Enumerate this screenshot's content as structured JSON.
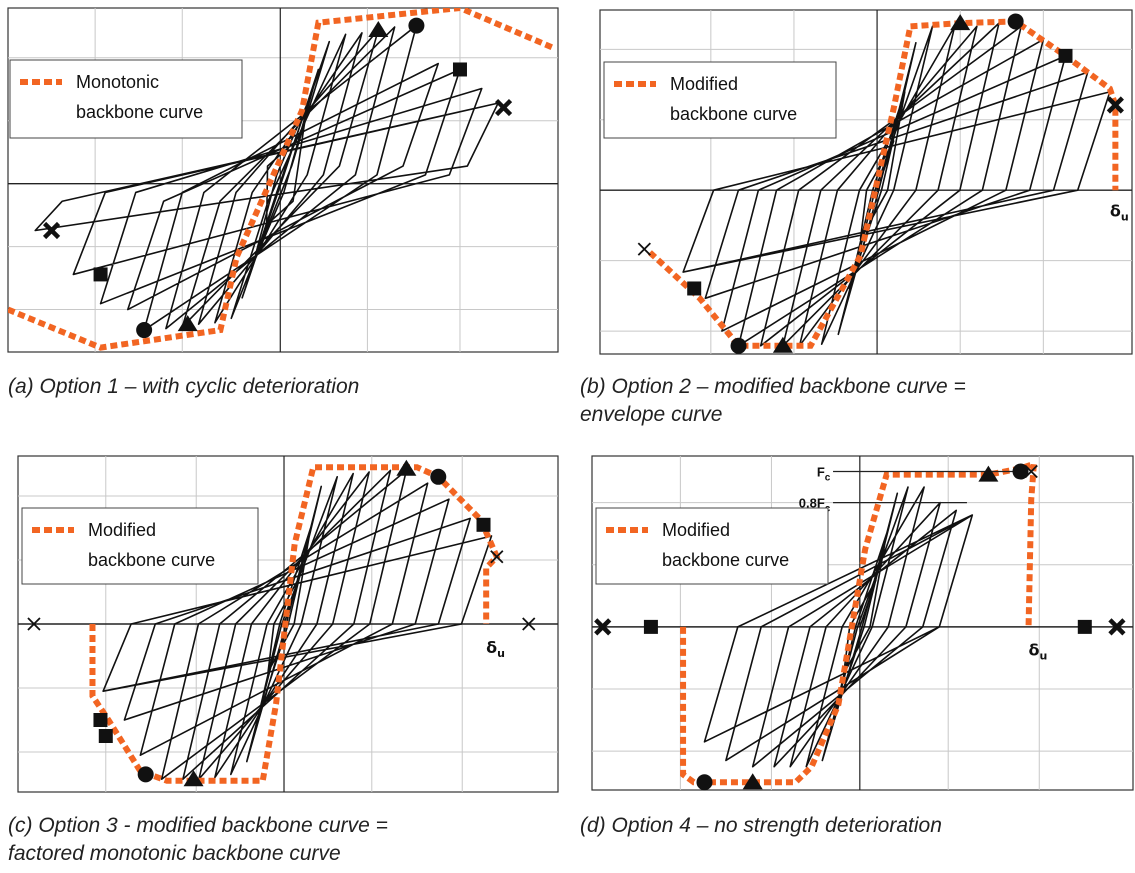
{
  "colors": {
    "backbone": "#f26522",
    "hysteresis": "#111111",
    "grid": "#c8c8c8",
    "frame": "#333333"
  },
  "chart_data": [
    {
      "type": "line",
      "id": "a",
      "caption": [
        "(a) Option 1 – with cyclic deterioration"
      ],
      "legend": {
        "label_1": "Monotonic",
        "label_2": "backbone curve"
      },
      "x_range": [
        -1,
        1.02
      ],
      "y_range": [
        -1.15,
        1.2
      ],
      "grid_x": [
        -0.68,
        -0.36,
        0,
        0.32,
        0.66
      ],
      "grid_y": [
        -0.86,
        -0.43,
        0,
        0.43,
        0.86
      ],
      "backbone": [
        [
          -1.0,
          -0.86
        ],
        [
          -0.66,
          -1.12
        ],
        [
          -0.22,
          -1.0
        ],
        [
          -0.16,
          -0.5
        ],
        [
          0.08,
          0.5
        ],
        [
          0.14,
          1.1
        ],
        [
          0.66,
          1.2
        ],
        [
          1.0,
          0.93
        ]
      ],
      "loops": [
        [
          0.05,
          0.28
        ],
        [
          0.1,
          0.55
        ],
        [
          0.14,
          0.78
        ],
        [
          0.18,
          0.97
        ],
        [
          0.24,
          1.02
        ],
        [
          0.3,
          1.03
        ],
        [
          0.36,
          1.05
        ],
        [
          0.42,
          1.07
        ],
        [
          0.5,
          1.08
        ],
        [
          0.58,
          0.82
        ],
        [
          0.66,
          0.78
        ],
        [
          0.74,
          0.65
        ],
        [
          0.8,
          0.55
        ]
      ],
      "neg_loops": [
        [
          -0.05,
          -0.28
        ],
        [
          -0.1,
          -0.55
        ],
        [
          -0.14,
          -0.78
        ],
        [
          -0.18,
          -0.92
        ],
        [
          -0.24,
          -0.95
        ],
        [
          -0.3,
          -0.96
        ],
        [
          -0.36,
          -0.98
        ],
        [
          -0.42,
          -0.99
        ],
        [
          -0.5,
          -1.0
        ],
        [
          -0.56,
          -0.86
        ],
        [
          -0.66,
          -0.82
        ],
        [
          -0.76,
          -0.62
        ],
        [
          -0.9,
          -0.32
        ]
      ],
      "release_to": "low",
      "markers": [
        {
          "shape": "triangle",
          "x": 0.36,
          "y": 1.05
        },
        {
          "shape": "circle",
          "x": 0.5,
          "y": 1.08
        },
        {
          "shape": "square",
          "x": 0.66,
          "y": 0.78
        },
        {
          "shape": "xbold",
          "x": 0.82,
          "y": 0.52
        },
        {
          "shape": "triangle",
          "x": -0.34,
          "y": -0.96
        },
        {
          "shape": "circle",
          "x": -0.5,
          "y": -1.0
        },
        {
          "shape": "square",
          "x": -0.66,
          "y": -0.62
        },
        {
          "shape": "xbold",
          "x": -0.84,
          "y": -0.32
        }
      ],
      "annotations": []
    },
    {
      "type": "line",
      "id": "b",
      "caption": [
        "(b) Option 2 – modified backbone curve =",
        "envelope curve"
      ],
      "legend": {
        "label_1": "Modified",
        "label_2": "backbone curve"
      },
      "x_range": [
        -1,
        0.92
      ],
      "y_range": [
        -1.0,
        1.1
      ],
      "grid_x": [
        -0.6,
        -0.3,
        0,
        0.3,
        0.6
      ],
      "grid_y": [
        -0.86,
        -0.43,
        0,
        0.43,
        0.86
      ],
      "backbone": [
        [
          -0.82,
          -0.38
        ],
        [
          -0.64,
          -0.66
        ],
        [
          -0.5,
          -0.95
        ],
        [
          -0.36,
          -0.95
        ],
        [
          -0.24,
          -0.95
        ],
        [
          -0.06,
          -0.4
        ],
        [
          0.06,
          0.5
        ],
        [
          0.12,
          1.0
        ],
        [
          0.3,
          1.02
        ],
        [
          0.5,
          1.03
        ],
        [
          0.68,
          0.82
        ],
        [
          0.84,
          0.62
        ],
        [
          0.86,
          0.52
        ],
        [
          0.86,
          0.0
        ]
      ],
      "loops": [
        [
          0.06,
          0.3
        ],
        [
          0.1,
          0.6
        ],
        [
          0.14,
          0.9
        ],
        [
          0.2,
          1.0
        ],
        [
          0.28,
          1.0
        ],
        [
          0.36,
          1.0
        ],
        [
          0.44,
          1.02
        ],
        [
          0.52,
          1.0
        ],
        [
          0.6,
          0.92
        ],
        [
          0.68,
          0.82
        ],
        [
          0.76,
          0.72
        ],
        [
          0.84,
          0.6
        ]
      ],
      "neg_loops": [
        [
          -0.06,
          -0.3
        ],
        [
          -0.1,
          -0.6
        ],
        [
          -0.14,
          -0.88
        ],
        [
          -0.2,
          -0.94
        ],
        [
          -0.28,
          -0.95
        ],
        [
          -0.34,
          -0.95
        ],
        [
          -0.42,
          -0.95
        ],
        [
          -0.5,
          -0.95
        ],
        [
          -0.56,
          -0.86
        ],
        [
          -0.62,
          -0.66
        ],
        [
          -0.7,
          -0.5
        ]
      ],
      "release_to": "zero",
      "markers": [
        {
          "shape": "triangle",
          "x": 0.3,
          "y": 1.02
        },
        {
          "shape": "circle",
          "x": 0.5,
          "y": 1.03
        },
        {
          "shape": "square",
          "x": 0.68,
          "y": 0.82
        },
        {
          "shape": "xbold",
          "x": 0.86,
          "y": 0.52
        },
        {
          "shape": "triangle",
          "x": -0.34,
          "y": -0.95
        },
        {
          "shape": "circle",
          "x": -0.5,
          "y": -0.95
        },
        {
          "shape": "square",
          "x": -0.66,
          "y": -0.6
        },
        {
          "shape": "xthin",
          "x": -0.84,
          "y": -0.36
        }
      ],
      "annotations": [
        {
          "text": "δ",
          "sub": "u",
          "x": 0.84,
          "y": -0.1
        }
      ]
    },
    {
      "type": "line",
      "id": "c",
      "caption": [
        "(c) Option 3 - modified backbone curve =",
        "factored monotonic backbone curve"
      ],
      "legend": {
        "label_1": "Modified",
        "label_2": "backbone curve"
      },
      "x_range": [
        -1,
        1.03
      ],
      "y_range": [
        -1.05,
        1.05
      ],
      "grid_x": [
        -0.67,
        -0.33,
        0,
        0.33,
        0.67
      ],
      "grid_y": [
        -0.8,
        -0.4,
        0,
        0.4,
        0.8
      ],
      "backbone": [
        [
          -0.72,
          0.0
        ],
        [
          -0.72,
          -0.45
        ],
        [
          -0.66,
          -0.6
        ],
        [
          -0.54,
          -0.92
        ],
        [
          -0.44,
          -0.98
        ],
        [
          -0.08,
          -0.98
        ],
        [
          -0.03,
          -0.5
        ],
        [
          0.04,
          0.5
        ],
        [
          0.11,
          0.98
        ],
        [
          0.5,
          0.98
        ],
        [
          0.58,
          0.92
        ],
        [
          0.74,
          0.65
        ],
        [
          0.8,
          0.42
        ],
        [
          0.76,
          0.35
        ],
        [
          0.76,
          0.0
        ]
      ],
      "loops": [
        [
          0.06,
          0.3
        ],
        [
          0.1,
          0.6
        ],
        [
          0.14,
          0.86
        ],
        [
          0.2,
          0.92
        ],
        [
          0.26,
          0.94
        ],
        [
          0.32,
          0.95
        ],
        [
          0.4,
          0.96
        ],
        [
          0.46,
          0.96
        ],
        [
          0.54,
          0.88
        ],
        [
          0.62,
          0.78
        ],
        [
          0.7,
          0.66
        ],
        [
          0.78,
          0.55
        ]
      ],
      "neg_loops": [
        [
          -0.06,
          -0.3
        ],
        [
          -0.1,
          -0.6
        ],
        [
          -0.14,
          -0.86
        ],
        [
          -0.2,
          -0.94
        ],
        [
          -0.26,
          -0.96
        ],
        [
          -0.32,
          -0.97
        ],
        [
          -0.38,
          -0.97
        ],
        [
          -0.46,
          -0.97
        ],
        [
          -0.54,
          -0.82
        ],
        [
          -0.6,
          -0.6
        ],
        [
          -0.68,
          -0.42
        ]
      ],
      "release_to": "zero",
      "markers": [
        {
          "shape": "triangle",
          "x": 0.46,
          "y": 0.97
        },
        {
          "shape": "circle",
          "x": 0.58,
          "y": 0.92
        },
        {
          "shape": "square",
          "x": 0.75,
          "y": 0.62
        },
        {
          "shape": "xthin",
          "x": 0.8,
          "y": 0.42
        },
        {
          "shape": "xthin",
          "x": 0.92,
          "y": 0.0
        },
        {
          "shape": "triangle",
          "x": -0.34,
          "y": -0.97
        },
        {
          "shape": "circle",
          "x": -0.52,
          "y": -0.94
        },
        {
          "shape": "square",
          "x": -0.69,
          "y": -0.6
        },
        {
          "shape": "square",
          "x": -0.67,
          "y": -0.7
        },
        {
          "shape": "xthin",
          "x": -0.94,
          "y": 0.0
        }
      ],
      "annotations": [
        {
          "text": "δ",
          "sub": "u",
          "x": 0.76,
          "y": -0.12
        }
      ]
    },
    {
      "type": "line",
      "id": "d",
      "caption": [
        "(d) Option 4 – no strength deterioration"
      ],
      "legend": {
        "label_1": "Modified",
        "label_2": "backbone curve"
      },
      "x_range": [
        -1,
        1.02
      ],
      "y_range": [
        -1.05,
        1.1
      ],
      "grid_x": [
        -0.67,
        -0.33,
        0,
        0.33,
        0.67
      ],
      "grid_y": [
        -0.8,
        -0.4,
        0,
        0.4,
        0.8
      ],
      "backbone": [
        [
          -0.66,
          0.0
        ],
        [
          -0.66,
          -0.95
        ],
        [
          -0.62,
          -1.0
        ],
        [
          -0.24,
          -1.0
        ],
        [
          -0.18,
          -0.9
        ],
        [
          -0.08,
          -0.5
        ],
        [
          0.02,
          0.5
        ],
        [
          0.1,
          0.98
        ],
        [
          0.48,
          0.98
        ],
        [
          0.6,
          1.02
        ],
        [
          0.65,
          1.05
        ],
        [
          0.64,
          0.82
        ],
        [
          0.63,
          0.0
        ]
      ],
      "loops": [
        [
          0.06,
          0.3
        ],
        [
          0.1,
          0.6
        ],
        [
          0.14,
          0.86
        ],
        [
          0.18,
          0.9
        ],
        [
          0.24,
          0.9
        ],
        [
          0.3,
          0.8
        ],
        [
          0.36,
          0.75
        ],
        [
          0.42,
          0.72
        ]
      ],
      "neg_loops": [
        [
          -0.06,
          -0.3
        ],
        [
          -0.1,
          -0.6
        ],
        [
          -0.14,
          -0.86
        ],
        [
          -0.2,
          -0.9
        ],
        [
          -0.26,
          -0.9
        ],
        [
          -0.32,
          -0.9
        ],
        [
          -0.4,
          -0.9
        ],
        [
          -0.5,
          -0.86
        ],
        [
          -0.58,
          -0.74
        ]
      ],
      "release_to": "zero",
      "markers": [
        {
          "shape": "triangle",
          "x": 0.48,
          "y": 0.98
        },
        {
          "shape": "circle",
          "x": 0.6,
          "y": 1.0
        },
        {
          "shape": "xthin",
          "x": 0.64,
          "y": 1.0
        },
        {
          "shape": "square",
          "x": 0.84,
          "y": 0.0
        },
        {
          "shape": "xbold",
          "x": 0.96,
          "y": 0.0
        },
        {
          "shape": "triangle",
          "x": -0.4,
          "y": -1.0
        },
        {
          "shape": "circle",
          "x": -0.58,
          "y": -1.0
        },
        {
          "shape": "square",
          "x": -0.78,
          "y": 0.0
        },
        {
          "shape": "xbold",
          "x": -0.96,
          "y": 0.0
        }
      ],
      "annotations": [
        {
          "text": "δ",
          "sub": "u",
          "x": 0.63,
          "y": -0.12
        }
      ],
      "reference_lines": [
        {
          "label": "F",
          "sub": "c",
          "y": 1.0,
          "x_end": 0.62
        },
        {
          "label": "0.8F",
          "sub": "c",
          "y": 0.8,
          "x_end": 0.4
        }
      ]
    }
  ]
}
